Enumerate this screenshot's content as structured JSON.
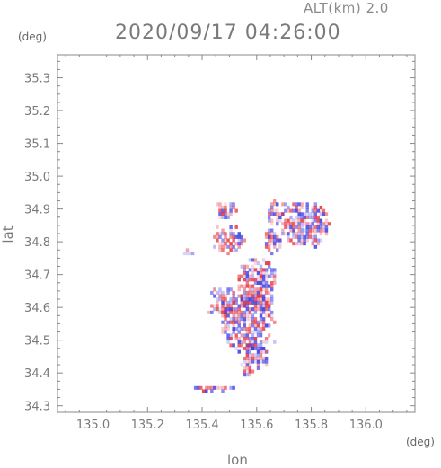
{
  "header": {
    "alt_label": "ALT(km) 2.0",
    "time_label": "2020/09/17 04:26:00"
  },
  "axes": {
    "y_unit": "(deg)",
    "x_unit": "(deg)",
    "xlabel": "lon",
    "ylabel": "lat"
  },
  "chart_data": {
    "type": "heatmap",
    "title": "2020/09/17 04:26:00",
    "xlabel": "lon",
    "ylabel": "lat",
    "xlim": [
      134.87,
      136.18
    ],
    "ylim": [
      34.28,
      35.37
    ],
    "x_ticks": [
      135.0,
      135.2,
      135.4,
      135.6,
      135.8,
      136.0
    ],
    "x_tick_labels": [
      "135.0",
      "135.2",
      "135.4",
      "135.6",
      "135.8",
      "136.0"
    ],
    "y_ticks": [
      34.3,
      34.4,
      34.5,
      34.6,
      34.7,
      34.8,
      34.9,
      35.0,
      35.1,
      35.2,
      35.3
    ],
    "y_tick_labels": [
      "34.3",
      "34.4",
      "34.5",
      "34.6",
      "34.7",
      "34.8",
      "34.9",
      "35.0",
      "35.1",
      "35.2",
      "35.3"
    ],
    "grid": false,
    "colors": {
      "positive": "#e8333c",
      "negative": "#3a3ae6",
      "axis": "#888888"
    },
    "regions": [
      {
        "lon": [
          135.45,
          135.52
        ],
        "lat": [
          34.86,
          34.92
        ]
      },
      {
        "lon": [
          135.43,
          135.55
        ],
        "lat": [
          34.76,
          34.84
        ]
      },
      {
        "lon": [
          135.63,
          135.69
        ],
        "lat": [
          34.84,
          34.92
        ]
      },
      {
        "lon": [
          135.62,
          135.68
        ],
        "lat": [
          34.76,
          34.84
        ]
      },
      {
        "lon": [
          135.68,
          135.86
        ],
        "lat": [
          34.78,
          34.92
        ]
      },
      {
        "lon": [
          135.52,
          135.67
        ],
        "lat": [
          34.58,
          34.75
        ]
      },
      {
        "lon": [
          135.46,
          135.66
        ],
        "lat": [
          34.46,
          34.64
        ]
      },
      {
        "lon": [
          135.54,
          135.64
        ],
        "lat": [
          34.4,
          34.5
        ]
      },
      {
        "lon": [
          135.54,
          135.58
        ],
        "lat": [
          34.38,
          34.42
        ]
      },
      {
        "lon": [
          135.42,
          135.52
        ],
        "lat": [
          34.66,
          34.56
        ]
      },
      {
        "lon": [
          135.36,
          135.52
        ],
        "lat": [
          34.34,
          34.36
        ]
      },
      {
        "lon": [
          135.32,
          135.36
        ],
        "lat": [
          34.75,
          34.77
        ]
      }
    ]
  }
}
